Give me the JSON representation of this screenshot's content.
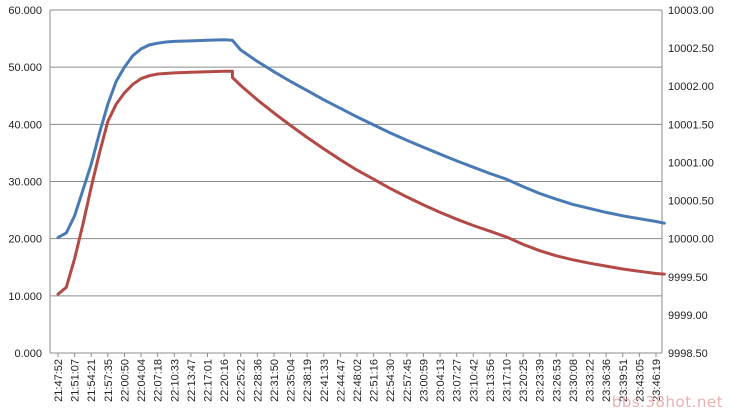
{
  "chart_data": {
    "type": "line",
    "title": "",
    "xlabel": "",
    "ylabel": "",
    "y_left": {
      "ylim": [
        0,
        60
      ],
      "ticks": [
        "0.000",
        "10.000",
        "20.000",
        "30.000",
        "40.000",
        "50.000",
        "60.000"
      ]
    },
    "y_right": {
      "ylim": [
        9998.5,
        10003.0
      ],
      "ticks": [
        "9998.50",
        "9999.00",
        "9999.50",
        "10000.00",
        "10000.50",
        "10001.00",
        "10001.50",
        "10002.00",
        "10002.50",
        "10003.00"
      ]
    },
    "grid": true,
    "legend": "none",
    "x_tick_labels": [
      "21:47:52",
      "21:51:07",
      "21:54:21",
      "21:57:35",
      "22:00:50",
      "22:04:04",
      "22:07:18",
      "22:10:33",
      "22:13:47",
      "22:17:01",
      "22:20:16",
      "22:25:22",
      "22:28:36",
      "22:31:50",
      "22:35:04",
      "22:38:19",
      "22:41:33",
      "22:44:47",
      "22:48:02",
      "22:51:16",
      "22:54:30",
      "22:57:45",
      "23:00:59",
      "23:04:13",
      "23:07:27",
      "23:10:42",
      "23:13:56",
      "23:17:10",
      "23:20:25",
      "23:23:39",
      "23:26:53",
      "23:30:08",
      "23:33:22",
      "23:36:36",
      "23:39:51",
      "23:43:05",
      "23:46:19"
    ],
    "x_positions": [
      0,
      1,
      2,
      3,
      4,
      5,
      6,
      7,
      8,
      9,
      10,
      11,
      12,
      13,
      14,
      15,
      16,
      17,
      18,
      19,
      20,
      21,
      22,
      23,
      24,
      25,
      26,
      27,
      28,
      29,
      30,
      31,
      32,
      33,
      34,
      35,
      36
    ],
    "series": [
      {
        "axis": "left",
        "color": "#4a7ab5",
        "points": [
          [
            0,
            20.2
          ],
          [
            0.5,
            21.0
          ],
          [
            1,
            24.0
          ],
          [
            1.5,
            28.5
          ],
          [
            2,
            33.0
          ],
          [
            2.5,
            38.5
          ],
          [
            3,
            43.5
          ],
          [
            3.5,
            47.5
          ],
          [
            4,
            50.0
          ],
          [
            4.5,
            52.0
          ],
          [
            5,
            53.2
          ],
          [
            5.5,
            53.9
          ],
          [
            6,
            54.2
          ],
          [
            6.5,
            54.4
          ],
          [
            7,
            54.5
          ],
          [
            8,
            54.6
          ],
          [
            9,
            54.7
          ],
          [
            10,
            54.8
          ],
          [
            10.5,
            54.7
          ],
          [
            11,
            53.0
          ],
          [
            12,
            51.0
          ],
          [
            13,
            49.2
          ],
          [
            14,
            47.5
          ],
          [
            15,
            45.9
          ],
          [
            16,
            44.3
          ],
          [
            17,
            42.8
          ],
          [
            18,
            41.3
          ],
          [
            19,
            39.9
          ],
          [
            20,
            38.5
          ],
          [
            21,
            37.2
          ],
          [
            22,
            36.0
          ],
          [
            23,
            34.8
          ],
          [
            24,
            33.6
          ],
          [
            25,
            32.5
          ],
          [
            26,
            31.4
          ],
          [
            27,
            30.4
          ],
          [
            28,
            29.1
          ],
          [
            29,
            27.9
          ],
          [
            30,
            26.9
          ],
          [
            31,
            26.0
          ],
          [
            32,
            25.3
          ],
          [
            33,
            24.6
          ],
          [
            34,
            24.0
          ],
          [
            35,
            23.5
          ],
          [
            36,
            23.0
          ],
          [
            36.5,
            22.7
          ]
        ]
      },
      {
        "axis": "left",
        "color": "#b24a47",
        "points": [
          [
            0,
            10.3
          ],
          [
            0.5,
            11.5
          ],
          [
            1,
            16.5
          ],
          [
            1.5,
            22.5
          ],
          [
            2,
            29.0
          ],
          [
            2.5,
            35.0
          ],
          [
            3,
            40.5
          ],
          [
            3.5,
            43.5
          ],
          [
            4,
            45.5
          ],
          [
            4.5,
            47.0
          ],
          [
            5,
            48.0
          ],
          [
            5.5,
            48.5
          ],
          [
            6,
            48.8
          ],
          [
            7,
            49.0
          ],
          [
            8,
            49.1
          ],
          [
            9,
            49.2
          ],
          [
            10,
            49.3
          ],
          [
            10.5,
            49.3
          ],
          [
            10.5,
            48.2
          ],
          [
            11,
            46.8
          ],
          [
            12,
            44.3
          ],
          [
            13,
            42.0
          ],
          [
            14,
            39.8
          ],
          [
            15,
            37.7
          ],
          [
            16,
            35.7
          ],
          [
            17,
            33.8
          ],
          [
            18,
            32.0
          ],
          [
            19,
            30.4
          ],
          [
            20,
            28.8
          ],
          [
            21,
            27.3
          ],
          [
            22,
            25.9
          ],
          [
            23,
            24.6
          ],
          [
            24,
            23.4
          ],
          [
            25,
            22.3
          ],
          [
            26,
            21.3
          ],
          [
            27,
            20.3
          ],
          [
            28,
            19.0
          ],
          [
            29,
            17.9
          ],
          [
            30,
            17.0
          ],
          [
            31,
            16.3
          ],
          [
            32,
            15.7
          ],
          [
            33,
            15.2
          ],
          [
            34,
            14.7
          ],
          [
            35,
            14.3
          ],
          [
            36,
            13.9
          ],
          [
            36.5,
            13.8
          ]
        ]
      }
    ]
  },
  "watermark": "bbs.38hot.net"
}
